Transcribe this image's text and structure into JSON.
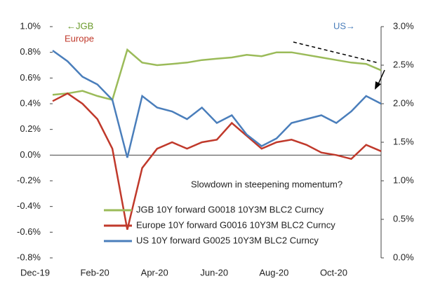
{
  "chart_data": {
    "type": "line",
    "categories": [
      "Dec-19",
      null,
      null,
      null,
      "Feb-20",
      null,
      null,
      null,
      "Apr-20",
      null,
      null,
      null,
      "Jun-20",
      null,
      null,
      null,
      "Aug-20",
      null,
      null,
      null,
      "Oct-20",
      null,
      null
    ],
    "series": [
      {
        "name": "JGB  10Y  forward G0018 10Y3M BLC2 Curncy",
        "color": "#9bbb59",
        "axis": "y",
        "values": [
          0.47,
          0.48,
          0.5,
          0.46,
          0.43,
          0.82,
          0.72,
          0.7,
          0.71,
          0.72,
          0.74,
          0.75,
          0.76,
          0.78,
          0.77,
          0.8,
          0.8,
          0.78,
          0.76,
          0.74,
          0.72,
          0.71,
          0.66
        ]
      },
      {
        "name": "Europe  10Y  forward G0016 10Y3M BLC2 Curncy",
        "color": "#c0392b",
        "axis": "y",
        "values": [
          0.42,
          0.48,
          0.4,
          0.28,
          0.05,
          -0.58,
          -0.1,
          0.05,
          0.1,
          0.05,
          0.1,
          0.12,
          0.25,
          0.15,
          0.05,
          0.1,
          0.12,
          0.08,
          0.02,
          0.0,
          -0.03,
          0.08,
          0.03
        ]
      },
      {
        "name": "US  10Y  forward G0025 10Y3M BLC2 Curncy",
        "color": "#4a7ebb",
        "axis": "y2",
        "values": [
          2.69,
          2.55,
          2.35,
          2.25,
          2.05,
          1.3,
          2.1,
          1.95,
          1.9,
          1.8,
          1.95,
          1.75,
          1.85,
          1.6,
          1.45,
          1.55,
          1.75,
          1.8,
          1.85,
          1.75,
          1.9,
          2.1,
          2.0
        ]
      }
    ],
    "ylim": [
      -0.8,
      1.0
    ],
    "yticks": [
      {
        "value": -0.8,
        "label": "-0.8%"
      },
      {
        "value": -0.6,
        "label": "-0.6%"
      },
      {
        "value": -0.4,
        "label": "-0.4%"
      },
      {
        "value": -0.2,
        "label": "-0.2%"
      },
      {
        "value": 0,
        "label": "0.0%"
      },
      {
        "value": 0.2,
        "label": "0.2%"
      },
      {
        "value": 0.4,
        "label": "0.4%"
      },
      {
        "value": 0.6,
        "label": "0.6%"
      },
      {
        "value": 0.8,
        "label": "0.8%"
      },
      {
        "value": 1.0,
        "label": "1.0%"
      }
    ],
    "y2lim": [
      0,
      3.0
    ],
    "y2ticks": [
      {
        "value": 0,
        "label": "0.0%"
      },
      {
        "value": 0.5,
        "label": "0.5%"
      },
      {
        "value": 1.0,
        "label": "1.0%"
      },
      {
        "value": 1.5,
        "label": "1.5%"
      },
      {
        "value": 2.0,
        "label": "2.0%"
      },
      {
        "value": 2.5,
        "label": "2.5%"
      },
      {
        "value": 3.0,
        "label": "3.0%"
      }
    ],
    "annotations": [
      "←JGB",
      "Europe",
      "US→",
      "Slowdown in steepening momentum?"
    ],
    "legend": "bottom"
  }
}
